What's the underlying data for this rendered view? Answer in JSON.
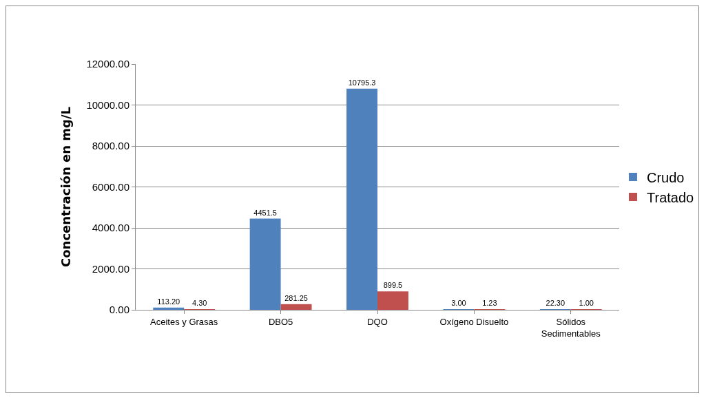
{
  "chart_data": {
    "type": "bar",
    "ylabel": "Concentración en mg/L",
    "categories": [
      "Aceites y Grasas",
      "DBO5",
      "DQO",
      "Oxígeno Disuelto",
      "Sólidos Sedimentables"
    ],
    "series": [
      {
        "name": "Crudo",
        "color": "#4f81bd",
        "values": [
          113.2,
          4451.5,
          10795.3,
          3,
          22.3
        ],
        "value_labels": [
          "113.20",
          "4451.5",
          "10795.3",
          "3.00",
          "22.30"
        ]
      },
      {
        "name": "Tratado",
        "color": "#c0504d",
        "values": [
          4.3,
          281.25,
          899.5,
          1.23,
          1
        ],
        "value_labels": [
          "4.30",
          "281.25",
          "899.5",
          "1.23",
          "1.00"
        ]
      }
    ],
    "ylim": [
      0,
      12000
    ],
    "yticks": [
      {
        "value": 0,
        "label": "0.00"
      },
      {
        "value": 2000,
        "label": "2000.00"
      },
      {
        "value": 4000,
        "label": "4000.00"
      },
      {
        "value": 6000,
        "label": "6000.00"
      },
      {
        "value": 8000,
        "label": "8000.00"
      },
      {
        "value": 10000,
        "label": "10000.00"
      },
      {
        "value": 12000,
        "label": "12000.00"
      }
    ],
    "grid": "y",
    "legend": "right"
  }
}
